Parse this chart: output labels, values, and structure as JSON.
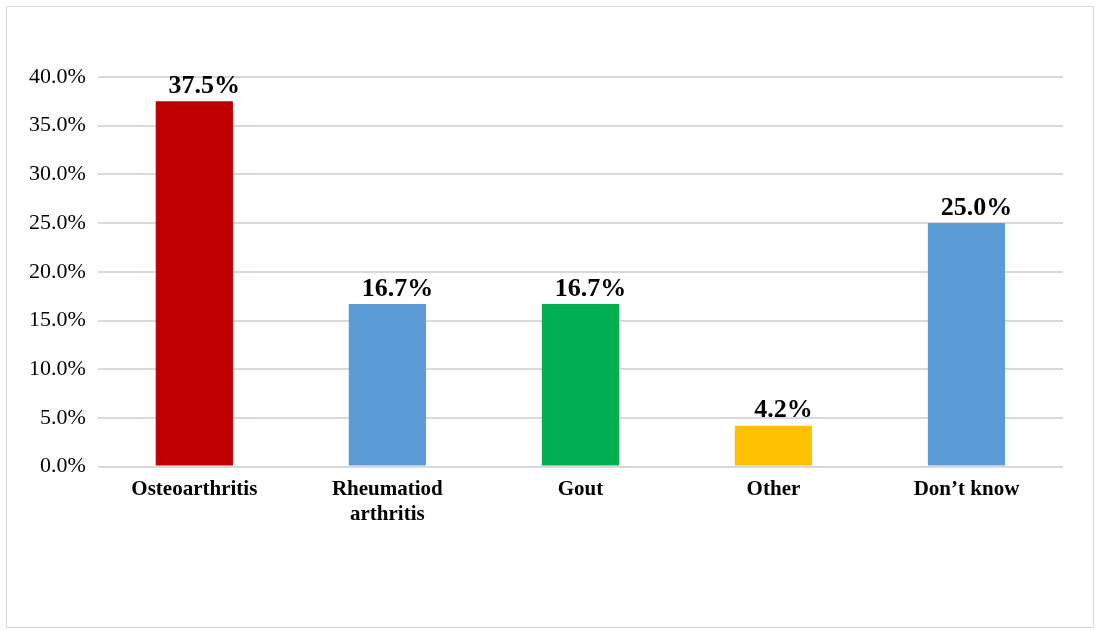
{
  "chart_data": {
    "type": "bar",
    "categories": [
      "Osteoarthritis",
      "Rheumatiod arthritis",
      "Gout",
      "Other",
      "Don’t know"
    ],
    "values": [
      37.5,
      16.7,
      16.7,
      4.2,
      25.0
    ],
    "colors": [
      "#c00000",
      "#5b9bd5",
      "#00b050",
      "#ffc000",
      "#5b9bd5"
    ],
    "value_labels": [
      "37.5%",
      "16.7%",
      "16.7%",
      "4.2%",
      "25.0%"
    ],
    "ylim": [
      0,
      40
    ],
    "yticks": [
      {
        "value": 0,
        "label": "0.0%"
      },
      {
        "value": 5,
        "label": "5.0%"
      },
      {
        "value": 10,
        "label": "10.0%"
      },
      {
        "value": 15,
        "label": "15.0%"
      },
      {
        "value": 20,
        "label": "20.0%"
      },
      {
        "value": 25,
        "label": "25.0%"
      },
      {
        "value": 30,
        "label": "30.0%"
      },
      {
        "value": 35,
        "label": "35.0%"
      },
      {
        "value": 40,
        "label": "40.0%"
      }
    ],
    "grid": "y"
  }
}
